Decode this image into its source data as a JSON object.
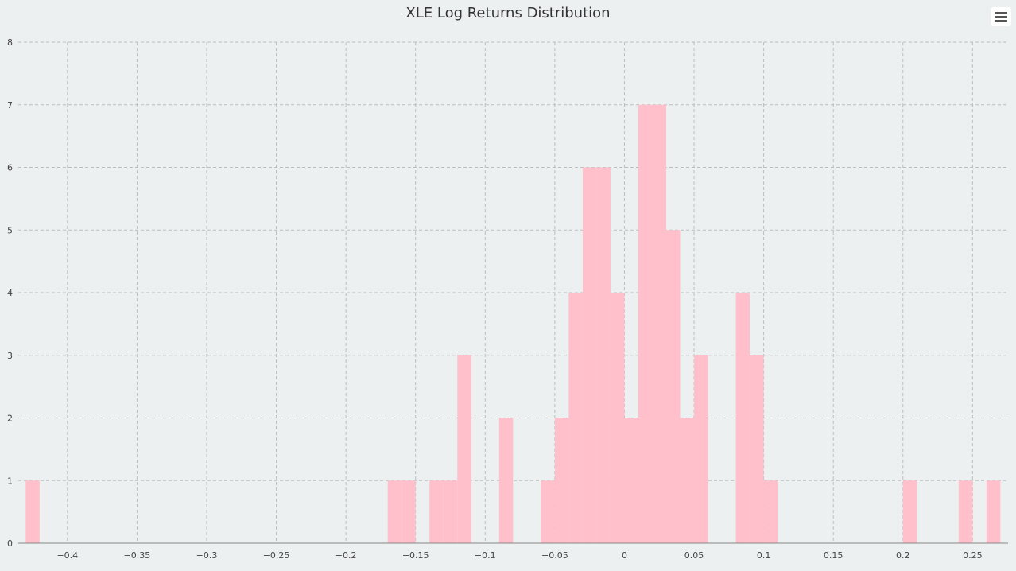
{
  "chart_data": {
    "type": "bar",
    "title": "XLE Log Returns Distribution",
    "xlabel": "",
    "ylabel": "",
    "xlim": [
      -0.4353,
      0.2755
    ],
    "ylim": [
      0,
      8
    ],
    "x_ticks": [
      "-0.4",
      "-0.35",
      "-0.3",
      "-0.25",
      "-0.2",
      "-0.15",
      "-0.1",
      "-0.05",
      "0",
      "0.05",
      "0.1",
      "0.15",
      "0.2",
      "0.25"
    ],
    "y_ticks": [
      "0",
      "1",
      "2",
      "3",
      "4",
      "5",
      "6",
      "7",
      "8"
    ],
    "grid": true,
    "bar_color": "#ffc0cb",
    "bin_width": 0.01,
    "bins": [
      {
        "start": -0.43,
        "end": -0.42,
        "count": 1
      },
      {
        "start": -0.17,
        "end": -0.16,
        "count": 1
      },
      {
        "start": -0.16,
        "end": -0.15,
        "count": 1
      },
      {
        "start": -0.14,
        "end": -0.13,
        "count": 1
      },
      {
        "start": -0.13,
        "end": -0.12,
        "count": 1
      },
      {
        "start": -0.12,
        "end": -0.11,
        "count": 3
      },
      {
        "start": -0.09,
        "end": -0.08,
        "count": 2
      },
      {
        "start": -0.06,
        "end": -0.05,
        "count": 1
      },
      {
        "start": -0.05,
        "end": -0.04,
        "count": 2
      },
      {
        "start": -0.04,
        "end": -0.03,
        "count": 4
      },
      {
        "start": -0.03,
        "end": -0.02,
        "count": 6
      },
      {
        "start": -0.02,
        "end": -0.01,
        "count": 6
      },
      {
        "start": -0.01,
        "end": 0.0,
        "count": 4
      },
      {
        "start": 0.0,
        "end": 0.01,
        "count": 2
      },
      {
        "start": 0.01,
        "end": 0.02,
        "count": 7
      },
      {
        "start": 0.02,
        "end": 0.03,
        "count": 7
      },
      {
        "start": 0.03,
        "end": 0.04,
        "count": 5
      },
      {
        "start": 0.04,
        "end": 0.05,
        "count": 2
      },
      {
        "start": 0.05,
        "end": 0.06,
        "count": 3
      },
      {
        "start": 0.08,
        "end": 0.09,
        "count": 4
      },
      {
        "start": 0.09,
        "end": 0.1,
        "count": 3
      },
      {
        "start": 0.1,
        "end": 0.11,
        "count": 1
      },
      {
        "start": 0.2,
        "end": 0.21,
        "count": 1
      },
      {
        "start": 0.24,
        "end": 0.25,
        "count": 1
      },
      {
        "start": 0.26,
        "end": 0.27,
        "count": 1
      }
    ]
  },
  "menu": {
    "icon": "hamburger-menu-icon"
  }
}
